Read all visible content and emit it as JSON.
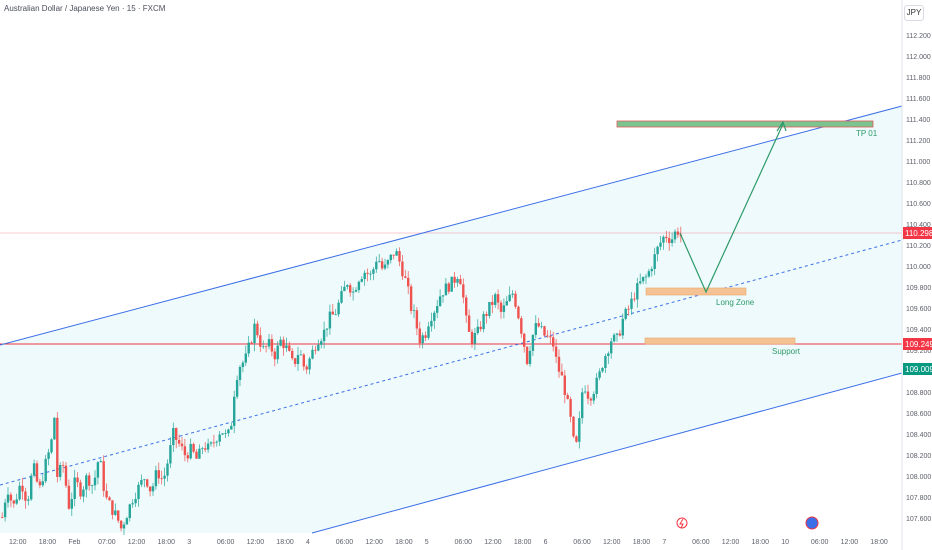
{
  "header": {
    "title": "Australian Dollar / Japanese Yen · 15 · FXCM",
    "currency": "JPY"
  },
  "colors": {
    "up": "#26a69a",
    "down": "#ef5350",
    "channel": "#3c6fe7",
    "channel_fill": "#eefafb",
    "target": "#2e9a6a",
    "zone": "#f5c293",
    "current_price": "#f23645",
    "support_price": "#f23645",
    "lower_price": "#089981"
  },
  "chart_data": {
    "type": "candlestick",
    "symbol": "AUDJPY",
    "timeframe": "15",
    "ylim": [
      107.5,
      112.3
    ],
    "y_ticks": [
      "112.200",
      "112.000",
      "111.800",
      "111.600",
      "111.400",
      "111.200",
      "111.000",
      "110.800",
      "110.600",
      "110.400",
      "110.200",
      "110.000",
      "109.800",
      "109.600",
      "109.400",
      "109.200",
      "109.000",
      "108.800",
      "108.600",
      "108.400",
      "108.200",
      "108.000",
      "107.800",
      "107.600"
    ],
    "x_ticks": [
      "12:00",
      "18:00",
      "Feb",
      "07:00",
      "12:00",
      "18:00",
      "3",
      "06:00",
      "12:00",
      "18:00",
      "4",
      "06:00",
      "12:00",
      "18:00",
      "5",
      "06:00",
      "12:00",
      "18:00",
      "6",
      "06:00",
      "12:00",
      "18:00",
      "7",
      "06:00",
      "12:00",
      "18:00",
      "10",
      "06:00",
      "12:00",
      "18:00"
    ],
    "price_labels": {
      "current": "110.298",
      "support": "109.249",
      "lower": "109.009"
    },
    "price_path": [
      [
        0,
        107.55
      ],
      [
        6,
        107.9
      ],
      [
        12,
        107.7
      ],
      [
        20,
        107.95
      ],
      [
        26,
        107.75
      ],
      [
        32,
        108.1
      ],
      [
        38,
        107.85
      ],
      [
        44,
        108.1
      ],
      [
        50,
        108.3
      ],
      [
        53,
        108.6
      ],
      [
        56,
        108.0
      ],
      [
        62,
        108.1
      ],
      [
        68,
        107.7
      ],
      [
        74,
        107.95
      ],
      [
        80,
        107.85
      ],
      [
        86,
        108.0
      ],
      [
        92,
        107.9
      ],
      [
        98,
        108.2
      ],
      [
        104,
        107.8
      ],
      [
        110,
        107.7
      ],
      [
        116,
        107.6
      ],
      [
        120,
        107.5
      ],
      [
        126,
        107.65
      ],
      [
        132,
        107.8
      ],
      [
        138,
        107.9
      ],
      [
        144,
        108.0
      ],
      [
        150,
        107.85
      ],
      [
        156,
        108.05
      ],
      [
        162,
        107.95
      ],
      [
        168,
        108.2
      ],
      [
        172,
        108.4
      ],
      [
        178,
        108.3
      ],
      [
        184,
        108.2
      ],
      [
        190,
        108.25
      ],
      [
        196,
        108.15
      ],
      [
        202,
        108.3
      ],
      [
        208,
        108.25
      ],
      [
        214,
        108.35
      ],
      [
        220,
        108.45
      ],
      [
        226,
        108.35
      ],
      [
        230,
        108.5
      ],
      [
        234,
        108.9
      ],
      [
        238,
        109.05
      ],
      [
        244,
        109.1
      ],
      [
        250,
        109.3
      ],
      [
        254,
        109.45
      ],
      [
        258,
        109.3
      ],
      [
        262,
        109.2
      ],
      [
        268,
        109.25
      ],
      [
        274,
        109.15
      ],
      [
        280,
        109.3
      ],
      [
        286,
        109.2
      ],
      [
        292,
        109.05
      ],
      [
        298,
        109.2
      ],
      [
        304,
        109.0
      ],
      [
        310,
        109.15
      ],
      [
        316,
        109.3
      ],
      [
        322,
        109.35
      ],
      [
        328,
        109.5
      ],
      [
        334,
        109.55
      ],
      [
        340,
        109.7
      ],
      [
        346,
        109.85
      ],
      [
        352,
        109.75
      ],
      [
        358,
        109.9
      ],
      [
        364,
        109.95
      ],
      [
        370,
        109.9
      ],
      [
        376,
        110.1
      ],
      [
        382,
        109.95
      ],
      [
        388,
        110.05
      ],
      [
        394,
        110.15
      ],
      [
        400,
        110.0
      ],
      [
        406,
        109.8
      ],
      [
        410,
        109.6
      ],
      [
        414,
        109.5
      ],
      [
        418,
        109.3
      ],
      [
        424,
        109.35
      ],
      [
        428,
        109.5
      ],
      [
        434,
        109.6
      ],
      [
        440,
        109.75
      ],
      [
        446,
        109.8
      ],
      [
        452,
        109.85
      ],
      [
        458,
        109.95
      ],
      [
        462,
        109.7
      ],
      [
        466,
        109.4
      ],
      [
        470,
        109.3
      ],
      [
        476,
        109.35
      ],
      [
        482,
        109.5
      ],
      [
        488,
        109.6
      ],
      [
        494,
        109.7
      ],
      [
        500,
        109.55
      ],
      [
        506,
        109.65
      ],
      [
        512,
        109.75
      ],
      [
        518,
        109.5
      ],
      [
        522,
        109.3
      ],
      [
        526,
        109.1
      ],
      [
        530,
        109.3
      ],
      [
        536,
        109.45
      ],
      [
        542,
        109.35
      ],
      [
        548,
        109.3
      ],
      [
        552,
        109.25
      ],
      [
        556,
        109.05
      ],
      [
        562,
        108.9
      ],
      [
        566,
        108.7
      ],
      [
        570,
        108.5
      ],
      [
        574,
        108.2
      ],
      [
        578,
        108.5
      ],
      [
        582,
        108.9
      ],
      [
        588,
        108.75
      ],
      [
        594,
        108.85
      ],
      [
        598,
        108.95
      ],
      [
        602,
        109.1
      ],
      [
        606,
        109.2
      ],
      [
        610,
        109.3
      ],
      [
        616,
        109.3
      ],
      [
        622,
        109.5
      ],
      [
        628,
        109.6
      ],
      [
        634,
        109.75
      ],
      [
        640,
        109.85
      ],
      [
        646,
        109.9
      ],
      [
        650,
        110.0
      ],
      [
        654,
        110.1
      ],
      [
        658,
        110.2
      ],
      [
        664,
        110.3
      ],
      [
        670,
        110.25
      ],
      [
        676,
        110.35
      ],
      [
        680,
        110.28
      ]
    ],
    "channel": {
      "upper": [
        [
          107.3,
          111.5
        ],
        [
          0,
          902
        ]
      ],
      "mid": [
        [
          107.8,
          110.2
        ]
      ],
      "lower": [
        [
          107.55,
          109.0
        ]
      ]
    },
    "zones": [
      {
        "label": "TP 01",
        "low": 111.31,
        "high": 111.36
      },
      {
        "label": "Long Zone",
        "low": 109.73,
        "high": 109.78
      },
      {
        "label": "Support",
        "low": 109.25,
        "high": 109.3
      }
    ]
  }
}
